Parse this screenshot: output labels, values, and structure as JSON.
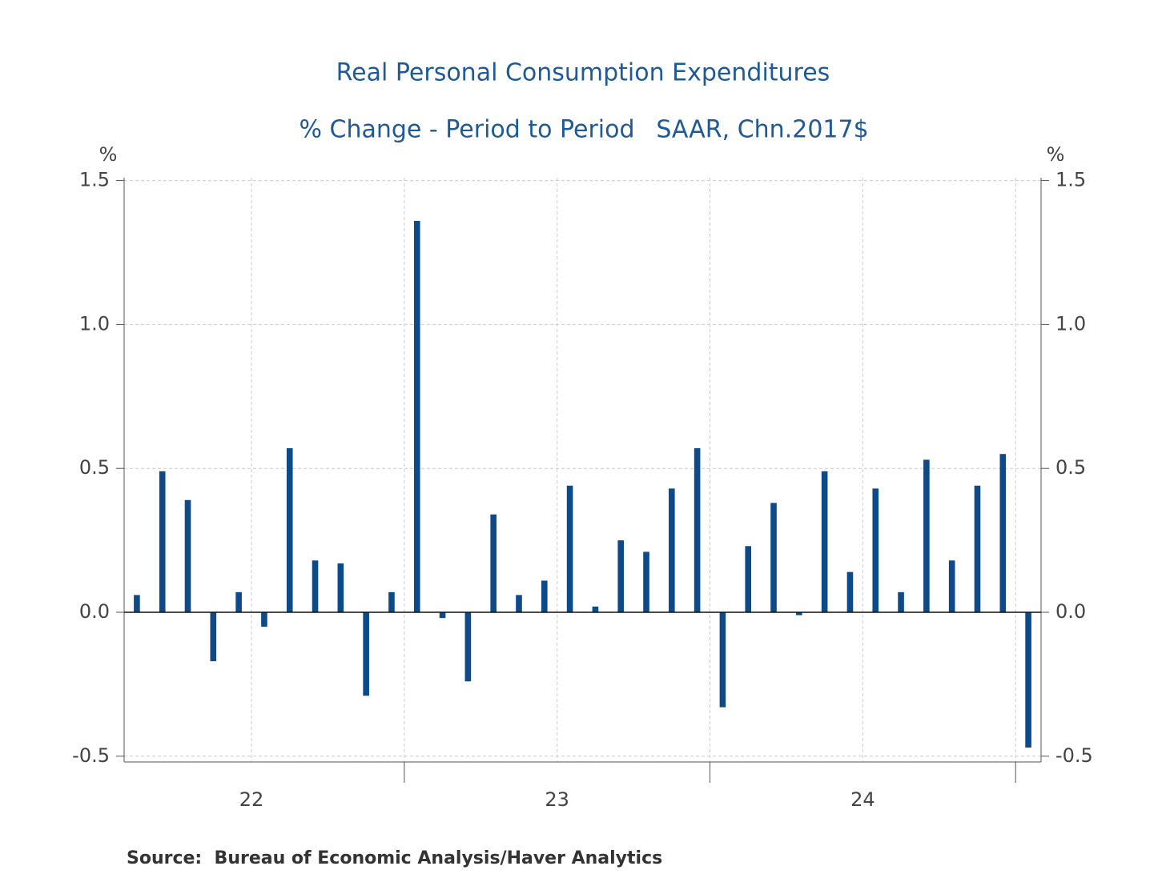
{
  "chart_data": {
    "type": "bar",
    "title": "Real Personal Consumption Expenditures",
    "subtitle": [
      "% Change - Period to Period",
      "SAAR, Chn.2017$"
    ],
    "y_unit_label": "%",
    "y2_unit_label": "%",
    "source": "Source:  Bureau of Economic Analysis/Haver Analytics",
    "categories": [
      null,
      null,
      null,
      null,
      null,
      null,
      null,
      null,
      null,
      null,
      null,
      null,
      null,
      null,
      null,
      null,
      null,
      null,
      null,
      null,
      null,
      null,
      null,
      null,
      null,
      null,
      null,
      null,
      null,
      null,
      null,
      null,
      null,
      null,
      null,
      null
    ],
    "year_labels": [
      "22",
      "23",
      "24"
    ],
    "values": [
      0.06,
      0.49,
      0.39,
      -0.17,
      0.07,
      -0.05,
      0.57,
      0.18,
      0.17,
      -0.29,
      0.07,
      1.36,
      -0.02,
      -0.24,
      0.34,
      0.06,
      0.11,
      0.44,
      0.02,
      0.25,
      0.21,
      0.43,
      0.57,
      -0.33,
      0.23,
      0.38,
      -0.01,
      0.49,
      0.14,
      0.43,
      0.07,
      0.53,
      0.18,
      0.44,
      0.55,
      -0.47
    ],
    "color": "#0d4a8a",
    "ylim": [
      -0.52,
      1.51
    ],
    "yticks": [
      {
        "value": -0.5,
        "label": "-0.5"
      },
      {
        "value": 0,
        "label": "0.0"
      },
      0.5,
      {
        "value": 1,
        "label": "1.0"
      },
      1.5
    ],
    "y2lim": [
      -0.52,
      1.51
    ],
    "y2ticks": [
      {
        "value": -0.5,
        "label": "-0.5"
      },
      {
        "value": 0,
        "label": "0.0"
      },
      0.5,
      {
        "value": 1,
        "label": "1.0"
      },
      1.5
    ],
    "grid": true
  }
}
